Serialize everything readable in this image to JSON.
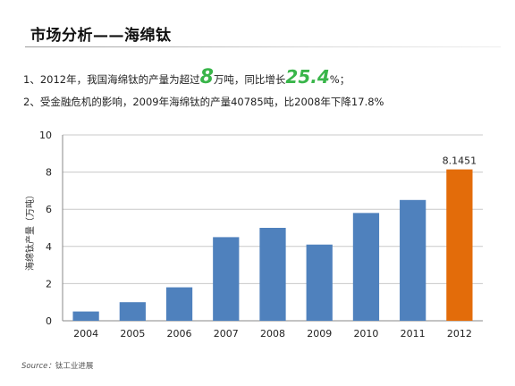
{
  "header": {
    "title": "市场分析——海绵钛"
  },
  "bullets": {
    "b1_prefix": "1、2012年，我国海绵钛的产量为超过",
    "b1_value": "8",
    "b1_mid": "万吨，同比增长",
    "b1_growth": "25.4",
    "b1_suffix": "%；",
    "b2": "2、受金融危机的影响，2009年海绵钛的产量40785吨，比2008年下降17.8%"
  },
  "chart_data": {
    "type": "bar",
    "categories": [
      "2004",
      "2005",
      "2006",
      "2007",
      "2008",
      "2009",
      "2010",
      "2011",
      "2012"
    ],
    "values": [
      0.5,
      1.0,
      1.8,
      4.5,
      5.0,
      4.1,
      5.8,
      6.5,
      8.1451
    ],
    "data_labels": [
      null,
      null,
      null,
      null,
      null,
      null,
      null,
      null,
      "8.1451"
    ],
    "ylabel": "海绵钛产量（万吨）",
    "ylim": [
      0,
      10
    ],
    "yticks": [
      "0",
      "2",
      "4",
      "6",
      "8",
      "10"
    ],
    "grid": true,
    "colors": {
      "default": "#4f81bd",
      "highlight": "#e36c0a"
    },
    "highlight_index": 8
  },
  "source": {
    "label": "Source：",
    "name": "钛工业进展"
  }
}
